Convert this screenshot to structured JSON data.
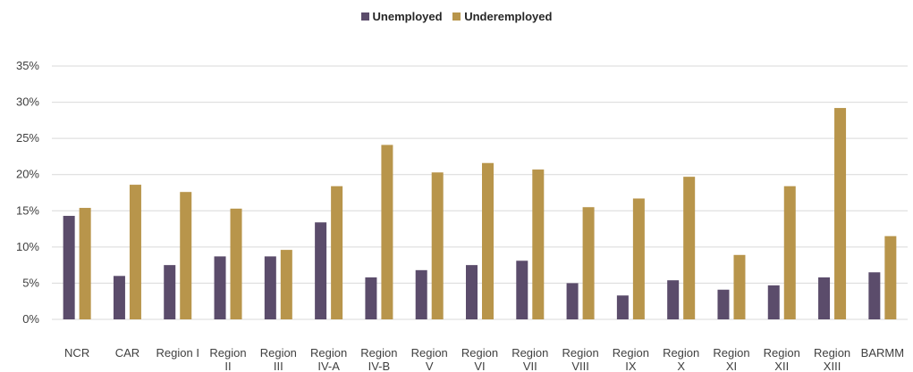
{
  "chart_data": {
    "type": "bar",
    "categories": [
      [
        "NCR"
      ],
      [
        "CAR"
      ],
      [
        "Region I"
      ],
      [
        "Region",
        "II"
      ],
      [
        "Region",
        "III"
      ],
      [
        "Region",
        "IV-A"
      ],
      [
        "Region",
        "IV-B"
      ],
      [
        "Region",
        "V"
      ],
      [
        "Region",
        "VI"
      ],
      [
        "Region",
        "VII"
      ],
      [
        "Region",
        "VIII"
      ],
      [
        "Region",
        "IX"
      ],
      [
        "Region",
        "X"
      ],
      [
        "Region",
        "XI"
      ],
      [
        "Region",
        "XII"
      ],
      [
        "Region",
        "XIII"
      ],
      [
        "BARMM"
      ]
    ],
    "series": [
      {
        "name": "Unemployed",
        "color": "#5b4c6b",
        "values": [
          14.3,
          6.0,
          7.5,
          8.7,
          8.7,
          13.4,
          5.8,
          6.8,
          7.5,
          8.1,
          5.0,
          3.3,
          5.4,
          4.1,
          4.7,
          5.8,
          6.5
        ]
      },
      {
        "name": "Underemployed",
        "color": "#b8954b",
        "values": [
          15.4,
          18.6,
          17.6,
          15.3,
          9.6,
          18.4,
          24.1,
          20.3,
          21.6,
          20.7,
          15.5,
          16.7,
          19.7,
          8.9,
          18.4,
          29.2,
          11.5
        ]
      }
    ],
    "y_ticks": [
      "0%",
      "5%",
      "10%",
      "15%",
      "20%",
      "25%",
      "30%",
      "35%"
    ],
    "ylim": [
      0,
      35
    ],
    "grid": true,
    "legend_position": "top-center"
  }
}
